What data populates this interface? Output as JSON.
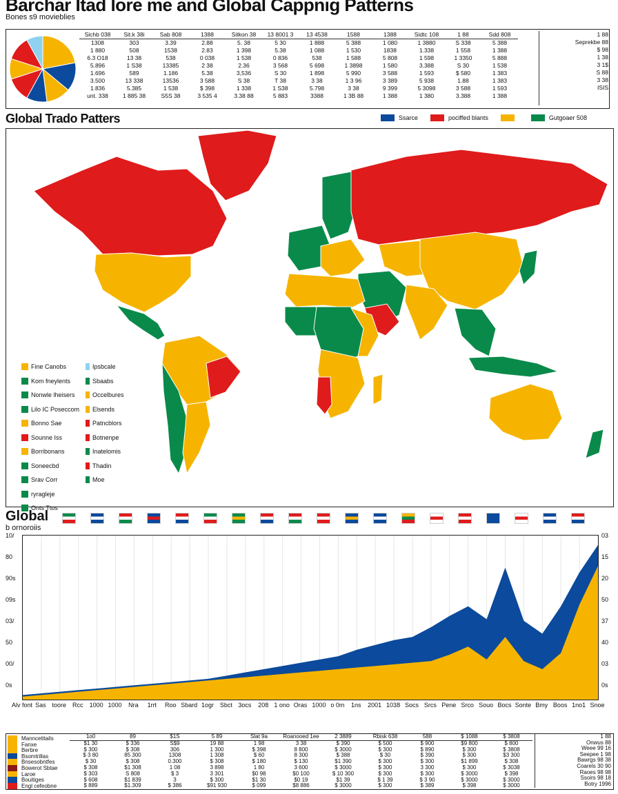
{
  "header": {
    "title": "Barchar Itad lore me and Global Cappnig Patterns",
    "subtitle": "Bones s9 movieblies"
  },
  "top_table": {
    "pie_slices": [
      {
        "value": 22,
        "color": "#f6b400"
      },
      {
        "value": 14,
        "color": "#0b4a9c"
      },
      {
        "value": 12,
        "color": "#f6b400"
      },
      {
        "value": 10,
        "color": "#0b4a9c"
      },
      {
        "value": 12,
        "color": "#e01b1b"
      },
      {
        "value": 10,
        "color": "#f6b400"
      },
      {
        "value": 12,
        "color": "#e01b1b"
      },
      {
        "value": 8,
        "color": "#8ed2f0"
      }
    ],
    "columns": [
      {
        "header": "Sichb 038",
        "cells": [
          "1308",
          "1 880",
          "6.3 O18",
          "5.896",
          "1.696",
          "3.500",
          "1.836",
          "unt. 338"
        ]
      },
      {
        "header": "Sit.k 38i",
        "cells": [
          "303",
          "508",
          "13 38",
          "1 S38",
          "589",
          "13 338",
          "5.385",
          "1 885 38"
        ]
      },
      {
        "header": "Sab 808",
        "cells": [
          "3.39",
          "1538",
          "538",
          "13385",
          "1.186",
          "13536",
          "1 538",
          "S5S 38"
        ]
      },
      {
        "header": "1388",
        "cells": [
          "2.88",
          "2.83",
          "0 038",
          "2 38",
          "5.38",
          "3 588",
          "$ 398",
          "3 535 4"
        ]
      },
      {
        "header": "Sitkon 38",
        "cells": [
          "5. 38",
          "1 398",
          "1 538",
          "2.36",
          "3,536",
          "S 38",
          "1 338",
          "3.38 88"
        ]
      },
      {
        "header": "13 8001 3",
        "cells": [
          "5 30",
          "5.38",
          "0 836",
          "3 568",
          "S 30",
          "T 38",
          "1 S38",
          "5 883"
        ]
      },
      {
        "header": "13 4538",
        "cells": [
          "1 888",
          "1 088",
          "538",
          "5 698",
          "1 898",
          "3 38",
          "5.798",
          "3388"
        ]
      },
      {
        "header": "1588",
        "cells": [
          "5 388",
          "1 530",
          "1 588",
          "1 3898",
          "5 990",
          "1 3 96",
          "3 38",
          "1 3B 88"
        ]
      },
      {
        "header": "1388",
        "cells": [
          "1 080",
          "1838",
          "5 808",
          "1 580",
          "3 588",
          "3 389",
          "9 399",
          "1 388"
        ]
      },
      {
        "header": "Sidtc 108",
        "cells": [
          "1 3880",
          "1.338",
          "1 598",
          "3.388",
          "1 593",
          "5 938",
          "5 3098",
          "1 380"
        ]
      },
      {
        "header": "1 88",
        "cells": [
          "S 338",
          "1 558",
          "1 3350",
          "S 30",
          "$ 580",
          "1.88",
          "3 588",
          "3.388"
        ]
      },
      {
        "header": "Sdd 808",
        "cells": [
          "5 388",
          "1 388",
          "5 888",
          "1 538",
          "1 383",
          "1 383",
          "1 593",
          "1 388"
        ]
      }
    ],
    "right_column": [
      "1 88",
      "Seprekbe 88",
      "$ 98",
      "1 38",
      "3 1$",
      "S 88",
      "3 38",
      "ISIS"
    ]
  },
  "map_section": {
    "title": "Global Trado Patters",
    "legend": [
      {
        "label": "Ssarce",
        "color": "#0b4a9c"
      },
      {
        "label": "pociffed blants",
        "color": "#e01b1b"
      },
      {
        "label": "",
        "color": "#f6b400"
      },
      {
        "label": "Gutgoaer 508",
        "color": "#0a8a4a"
      }
    ],
    "left_legend": [
      {
        "label": "Fine Canobs",
        "color": "#f6b400"
      },
      {
        "label": "Kom fneylents",
        "color": "#0a8a4a"
      },
      {
        "label": "Nonwle lheisers",
        "color": "#0a8a4a"
      },
      {
        "label": "Lilo IC Poseccom",
        "color": "#0a8a4a"
      },
      {
        "label": "Bonno Sae",
        "color": "#f6b400"
      },
      {
        "label": "Sounne Iss",
        "color": "#e01b1b"
      },
      {
        "label": "Borribonans",
        "color": "#f6b400"
      },
      {
        "label": "Soneecbd",
        "color": "#0a8a4a"
      },
      {
        "label": "Srav Corr",
        "color": "#0a8a4a"
      },
      {
        "label": "ryragleje",
        "color": "#0a8a4a"
      },
      {
        "label": "Onts Ttos",
        "color": "#0a8a4a"
      }
    ],
    "mid_legend": [
      {
        "label": "Ipsbcale",
        "color": "#8ed2f0"
      },
      {
        "label": "Sbaabs",
        "color": "#0a8a4a"
      },
      {
        "label": "Occelbures",
        "color": "#f6b400"
      },
      {
        "label": "Elsends",
        "color": "#f6b400"
      },
      {
        "label": "Patncblors",
        "color": "#e01b1b"
      },
      {
        "label": "Botnenpe",
        "color": "#e01b1b"
      },
      {
        "label": "Inatelomis",
        "color": "#0a8a4a"
      },
      {
        "label": "Thadin",
        "color": "#e01b1b"
      },
      {
        "label": "Moe",
        "color": "#0a8a4a"
      }
    ]
  },
  "area_section": {
    "title": "Global",
    "subtitle": "b ornoroiis",
    "left_ticks": [
      "10/",
      "80",
      "90s",
      "09s",
      "03/",
      "50",
      "00/",
      "0s"
    ],
    "right_ticks": [
      "03",
      "15",
      "20",
      "50",
      "37",
      "40",
      "03",
      "0s"
    ]
  },
  "chart_data": {
    "type": "area",
    "categories": [
      "Alv font",
      "Sas",
      "toore",
      "Rcc",
      "1000",
      "1000",
      "Nra",
      "1rrt",
      "Roo",
      "Sbard",
      "1ogr",
      "Sbct",
      "3ocs",
      "208",
      "1 ono",
      "Oras",
      "1000",
      "o 0m",
      "1ns",
      "2001",
      "1038",
      "Socs",
      "Srcs",
      "Pene",
      "Srco",
      "Souo",
      "Bocs",
      "Sonte",
      "Bmy",
      "Boos",
      "1no1",
      "Snoe"
    ],
    "series": [
      {
        "color": "#f6b400",
        "values": [
          1,
          2,
          3,
          4,
          5,
          6,
          7,
          8,
          9,
          10,
          11,
          12,
          13,
          14,
          15,
          16,
          17,
          18,
          19,
          20,
          21,
          22,
          23,
          27,
          32,
          24,
          38,
          23,
          18,
          28,
          58,
          82
        ]
      },
      {
        "color": "#0b4a9c",
        "values": [
          2,
          3,
          4,
          5,
          6,
          7,
          8,
          9,
          10,
          11,
          12,
          14,
          16,
          18,
          20,
          22,
          24,
          26,
          30,
          33,
          36,
          38,
          44,
          51,
          57,
          49,
          81,
          48,
          40,
          57,
          78,
          95
        ]
      }
    ],
    "ylim": [
      0,
      100
    ]
  },
  "bottom_table": {
    "rows": [
      {
        "label": "Manncetitails",
        "color": "#f6b400"
      },
      {
        "label": "Fanxe",
        "color": "#f6b400"
      },
      {
        "label": "Berbre",
        "color": "#f6b400"
      },
      {
        "label": "Bsomtrillas",
        "color": "#0b4a9c"
      },
      {
        "label": "Bnsesobntfes",
        "color": "#f6b400"
      },
      {
        "label": "Bowerot Sbtae",
        "color": "#8a1a1a"
      },
      {
        "label": "Laroe",
        "color": "#f6b400"
      },
      {
        "label": "Bouitiges",
        "color": "#0b4a9c"
      },
      {
        "label": "Engl cefeobne",
        "color": "#e01b1b"
      }
    ],
    "columns": [
      {
        "header": "1o0",
        "cells": [
          "$1 30",
          "$ 300",
          "$ 3 80",
          "$ 30",
          "$ 308",
          "$ 303",
          "$ 608",
          "$ 889"
        ]
      },
      {
        "header": "89",
        "cells": [
          "$ 336",
          "$ 308",
          "85 300",
          "$ 308",
          "$1 308",
          "S 808",
          "$1 839",
          "$1.309"
        ]
      },
      {
        "header": "$1S",
        "cells": [
          "S$9",
          "306",
          "1308",
          "0.300",
          "1 08",
          "$ 3",
          "3",
          "$ 386"
        ]
      },
      {
        "header": "5 89",
        "cells": [
          "19 88",
          "1 300",
          "1 308",
          "$ 308",
          "3 898",
          "3 301",
          "$ 300",
          "$91 930"
        ]
      },
      {
        "header": "Slat 9a",
        "cells": [
          "1 98",
          "$ 398",
          "$ 60",
          "$ 180",
          "1 80",
          "$0 98",
          "$1 30",
          "$ 099"
        ]
      },
      {
        "header": "Roanooed 1ee",
        "cells": [
          "3 38",
          "8 800",
          "8 300",
          "$ 130",
          "3 600",
          "$0 100",
          "$0 19",
          "$8 886"
        ]
      },
      {
        "header": "2 3889",
        "cells": [
          "$ 390",
          "$ 3000",
          "$ 388",
          "$1 390",
          "$ 3000",
          "$ 10 300",
          "$1 39",
          "$ 3000"
        ]
      },
      {
        "header": "Rbisk 638",
        "cells": [
          "$ 500",
          "$ 300",
          "$ 30",
          "$ 300",
          "$ 300",
          "$ 300",
          "$ 1 39",
          "$ 300"
        ]
      },
      {
        "header": "588",
        "cells": [
          "$ 900",
          "$ 890",
          "$ 390",
          "$ 300",
          "3 300",
          "$ 300",
          "$ 3 90",
          "$ 389"
        ]
      },
      {
        "header": "$ 1088",
        "cells": [
          "$9 800",
          "$ 300",
          "$ 300",
          "$1 899",
          "$ 300",
          "$ 3000",
          "$ 3000",
          "$ 398"
        ]
      },
      {
        "header": "$ 3808",
        "cells": [
          "$ 800",
          "$ 3808",
          "$3 300",
          "$ 308",
          "$ 3038",
          "$ 398",
          "$ 3000",
          "$ 3000"
        ]
      }
    ],
    "right_column": [
      "1 88",
      "Onwus 88",
      "Weee 99 16",
      "Seepee 1 98",
      "Bawrgs 98 38",
      "Coarels 30 90",
      "Raoes 98 98",
      "Ssoirs 98 18",
      "Botry 1996"
    ]
  },
  "flags_label": {
    "items": [
      "flag1",
      "flag2",
      "flag3",
      "flag4",
      "flag5",
      "flag6",
      "flag7",
      "flag8",
      "flag9",
      "flag10",
      "flag11",
      "flag12",
      "flag13",
      "flag14",
      "flag15",
      "flag16",
      "flag17",
      "flag18",
      "flag19",
      "flag20"
    ]
  }
}
